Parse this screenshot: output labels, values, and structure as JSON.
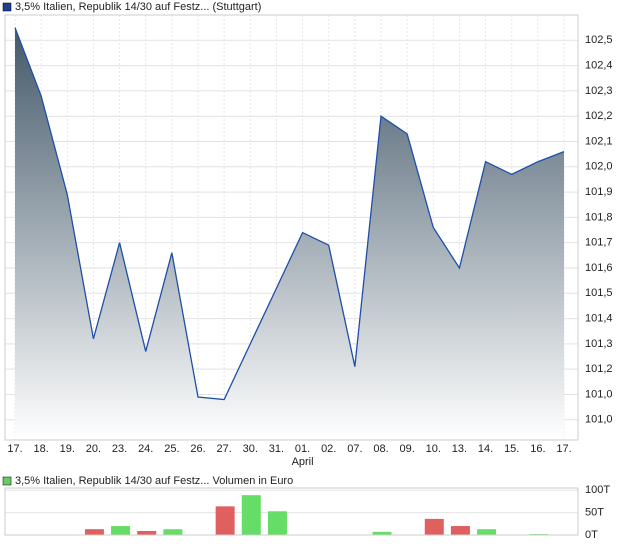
{
  "chart_data": [
    {
      "type": "area",
      "categories": [
        "17.",
        "18.",
        "19.",
        "20.",
        "23.",
        "24.",
        "25.",
        "26.",
        "27.",
        "30.",
        "31.",
        "01.",
        "02.",
        "07.",
        "08.",
        "09.",
        "10.",
        "13.",
        "14.",
        "15.",
        "16.",
        "17."
      ],
      "category_sublabels": [
        null,
        null,
        null,
        null,
        null,
        null,
        null,
        null,
        null,
        null,
        null,
        "April",
        null,
        null,
        null,
        null,
        null,
        null,
        null,
        null,
        null,
        null
      ],
      "series": [
        {
          "name": "3,5% Italien, Republik 14/30 auf Festz... (Stuttgart)",
          "color": "#1f4fa8",
          "values": [
            102.5,
            102.23,
            101.84,
            101.27,
            101.65,
            101.22,
            101.61,
            101.04,
            101.03,
            101.25,
            101.47,
            101.69,
            101.64,
            101.16,
            102.15,
            102.08,
            101.71,
            101.55,
            101.97,
            101.92,
            101.97,
            102.01
          ]
        }
      ],
      "ylim": [
        100.87,
        102.55
      ],
      "yticks": [
        {
          "value": 102.45,
          "label": "102,5"
        },
        {
          "value": 102.35,
          "label": "102,4"
        },
        {
          "value": 102.25,
          "label": "102,3"
        },
        {
          "value": 102.15,
          "label": "102,2"
        },
        {
          "value": 102.05,
          "label": "102,1"
        },
        {
          "value": 101.95,
          "label": "102,0"
        },
        {
          "value": 101.85,
          "label": "101,9"
        },
        {
          "value": 101.75,
          "label": "101,8"
        },
        {
          "value": 101.65,
          "label": "101,7"
        },
        {
          "value": 101.55,
          "label": "101,6"
        },
        {
          "value": 101.45,
          "label": "101,5"
        },
        {
          "value": 101.35,
          "label": "101,4"
        },
        {
          "value": 101.25,
          "label": "101,3"
        },
        {
          "value": 101.15,
          "label": "101,2"
        },
        {
          "value": 101.05,
          "label": "101,0"
        },
        {
          "value": 100.95,
          "label": "101,0"
        }
      ],
      "grid": true
    },
    {
      "type": "bar",
      "series": [
        {
          "name": "3,5% Italien, Republik 14/30 auf Festz... Volumen in Euro",
          "color": "#66cc66",
          "values": [
            null,
            null,
            null,
            13,
            20,
            9,
            13,
            null,
            64,
            89,
            53,
            null,
            null,
            null,
            7,
            null,
            36,
            20,
            13,
            null,
            2,
            null
          ],
          "colors": [
            null,
            null,
            null,
            "#e06060",
            "#66dd66",
            "#e06060",
            "#66dd66",
            null,
            "#e06060",
            "#66dd66",
            "#66dd66",
            null,
            null,
            null,
            "#66dd66",
            null,
            "#e06060",
            "#e06060",
            "#66dd66",
            null,
            "#66dd66",
            null
          ]
        }
      ],
      "ylim": [
        0,
        105
      ],
      "yticks": [
        {
          "value": 100,
          "label": "100T"
        },
        {
          "value": 50,
          "label": "50T"
        },
        {
          "value": 0,
          "label": "0T"
        }
      ],
      "grid": true
    }
  ]
}
